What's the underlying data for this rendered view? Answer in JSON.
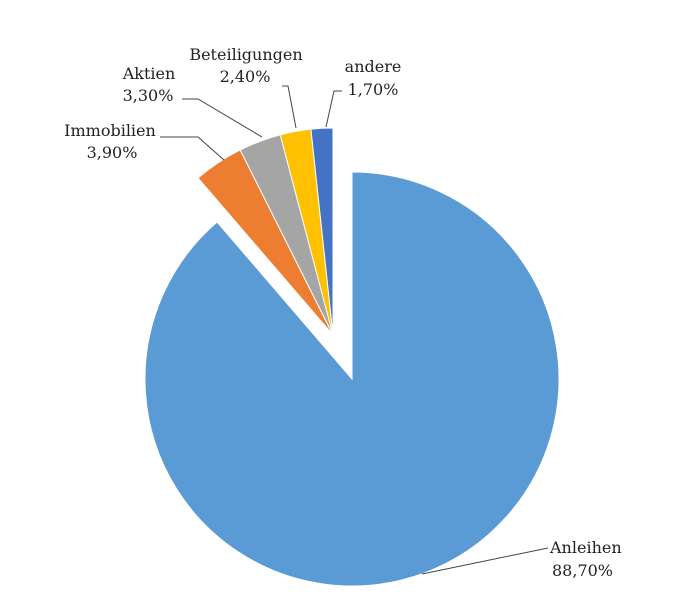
{
  "chart_data": {
    "type": "pie",
    "title": "",
    "slices": [
      {
        "label": "Anleihen",
        "value": 88.7,
        "value_label": "88,70%",
        "color": "#5B9BD5",
        "exploded": false
      },
      {
        "label": "Immobilien",
        "value": 3.9,
        "value_label": "3,90%",
        "color": "#ED7D31",
        "exploded": true
      },
      {
        "label": "Aktien",
        "value": 3.3,
        "value_label": "3,30%",
        "color": "#A5A5A5",
        "exploded": true
      },
      {
        "label": "Beteiligungen",
        "value": 2.4,
        "value_label": "2,40%",
        "color": "#FFC000",
        "exploded": true
      },
      {
        "label": "andere",
        "value": 1.7,
        "value_label": "1,70%",
        "color": "#4472C4",
        "exploded": true
      }
    ],
    "start_angle": "12 o'clock",
    "direction": "clockwise",
    "legend": "none",
    "data_labels": "outside with leader lines"
  }
}
